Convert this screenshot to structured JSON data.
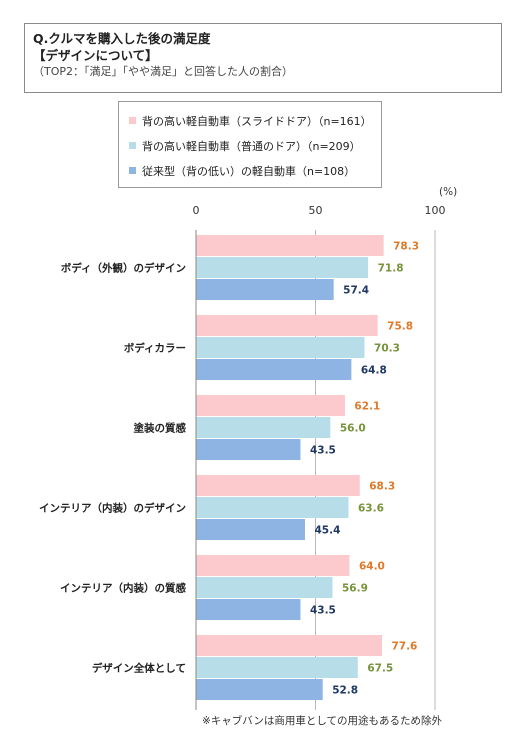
{
  "header": {
    "question": "Q.クルマを購入した後の満足度",
    "subject": "【デザインについて】",
    "note": "（TOP2：「満足」「やや満足」と回答した人の割合）"
  },
  "unit_label": "(%)",
  "footnote": "※キャブバンは商用車としての用途もあるため除外",
  "chart_data": {
    "type": "bar",
    "orientation": "horizontal",
    "categories": [
      "ボディ（外観）のデザイン",
      "ボディカラー",
      "塗装の質感",
      "インテリア（内装）のデザイン",
      "インテリア（内装）の質感",
      "デザイン全体として"
    ],
    "series": [
      {
        "name": "背の高い軽自動車（スライドドア）（n=161）",
        "values": [
          78.3,
          75.8,
          62.1,
          68.3,
          64.0,
          77.6
        ],
        "color": "#FCC9CC",
        "label_color": "#E07A2A"
      },
      {
        "name": "背の高い軽自動車（普通のドア）（n=209）",
        "values": [
          71.8,
          70.3,
          56.0,
          63.6,
          56.9,
          67.5
        ],
        "color": "#B7DEE8",
        "label_color": "#77933C"
      },
      {
        "name": "従来型（背の低い）の軽自動車（n=108）",
        "values": [
          57.4,
          64.8,
          43.5,
          45.4,
          43.5,
          52.8
        ],
        "color": "#8EB4E3",
        "label_color": "#1F3864"
      }
    ],
    "xlim": [
      0,
      100
    ],
    "xticks": [
      0,
      50,
      100
    ],
    "grid": true,
    "legend_position": "top"
  }
}
